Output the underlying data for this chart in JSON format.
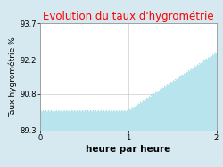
{
  "title": "Evolution du taux d'hygrométrie",
  "title_color": "#ff0000",
  "xlabel": "heure par heure",
  "ylabel": "Taux hygrométrie %",
  "x": [
    0,
    1,
    2
  ],
  "y": [
    90.1,
    90.1,
    92.5
  ],
  "ylim": [
    89.3,
    93.7
  ],
  "xlim": [
    0,
    2
  ],
  "yticks": [
    89.3,
    90.8,
    92.2,
    93.7
  ],
  "xticks": [
    0,
    1,
    2
  ],
  "line_color": "#7acfdc",
  "fill_color": "#b8e4ee",
  "fill_alpha": 1.0,
  "background_color": "#d6e8f0",
  "plot_bg_color": "#ffffff",
  "grid_color": "#c0c0c0",
  "title_fontsize": 8.5,
  "label_fontsize": 6.5,
  "tick_fontsize": 6,
  "xlabel_fontsize": 7.5
}
